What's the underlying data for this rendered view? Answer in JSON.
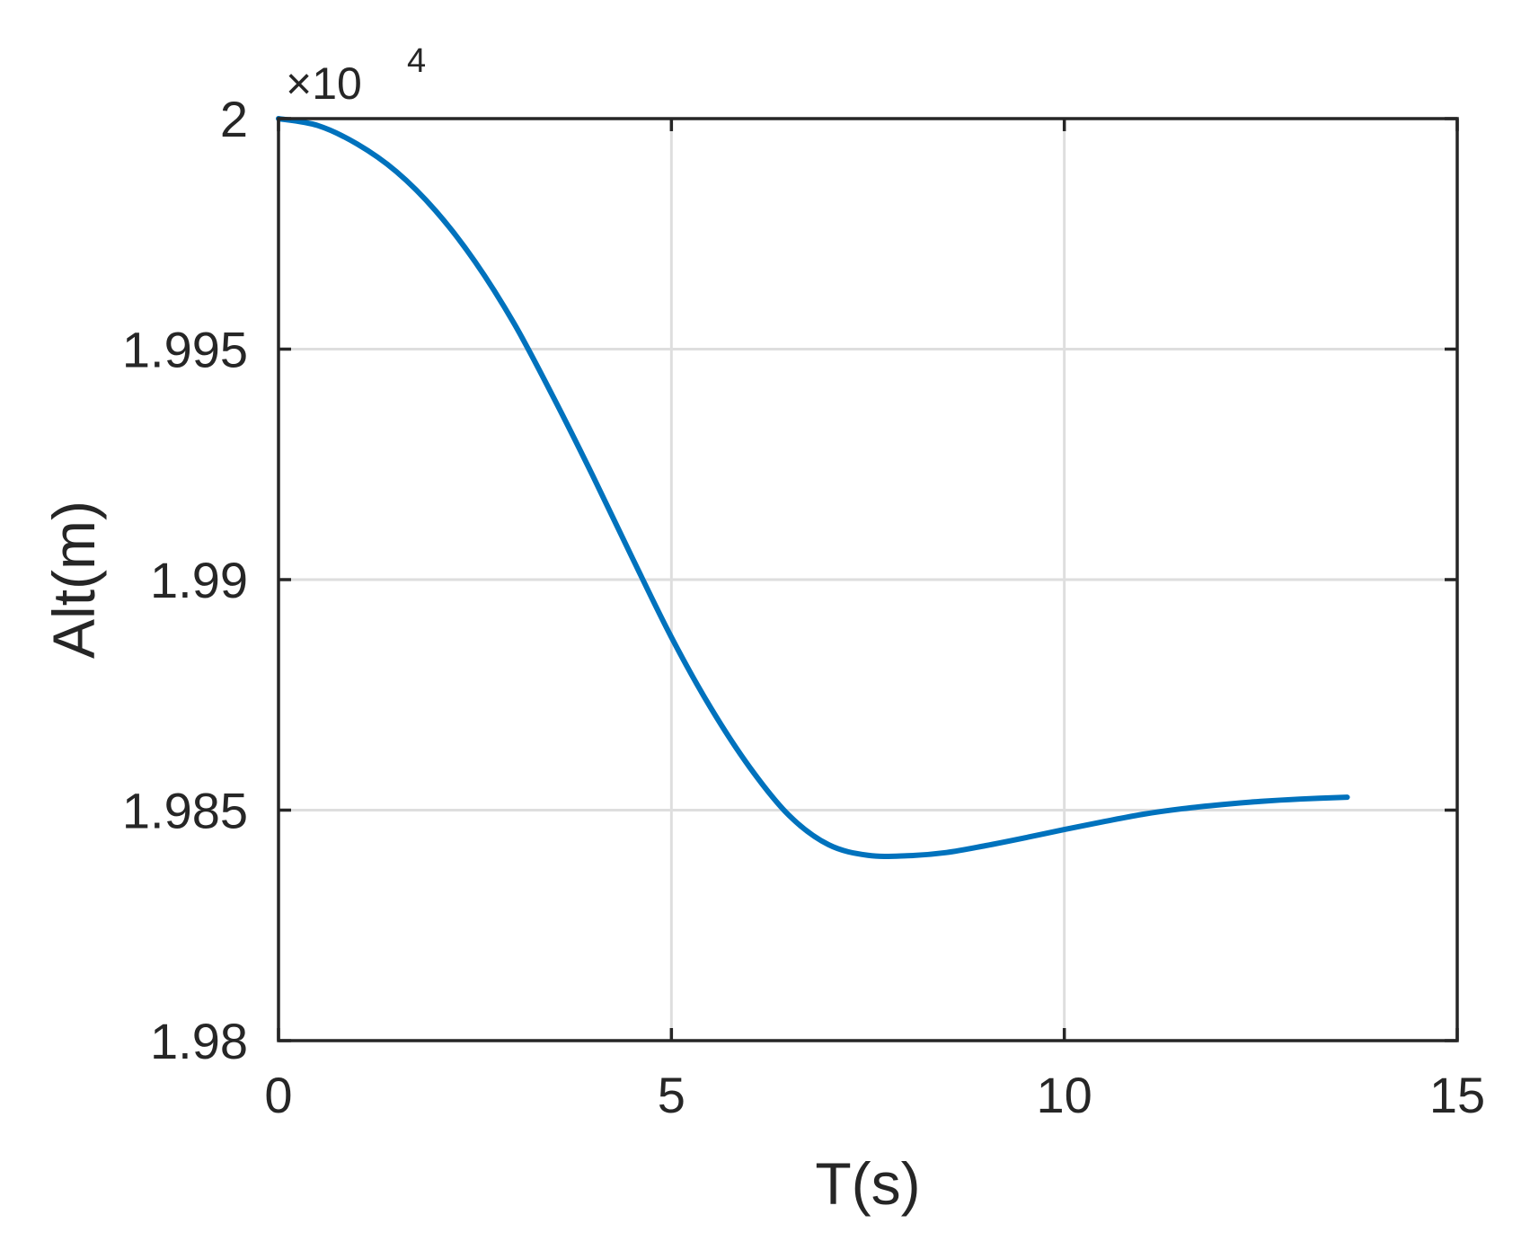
{
  "chart_data": {
    "type": "line",
    "title": "",
    "xlabel": "T(s)",
    "ylabel": "Alt(m)",
    "xlim": [
      0,
      15
    ],
    "ylim": [
      1.98,
      2.0
    ],
    "x_ticks": [
      0,
      5,
      10,
      15
    ],
    "x_tick_labels": [
      "0",
      "5",
      "10",
      "15"
    ],
    "y_ticks": [
      1.98,
      1.985,
      1.99,
      1.995,
      2.0
    ],
    "y_tick_labels": [
      "1.98",
      "1.985",
      "1.99",
      "1.995",
      "2"
    ],
    "y_exponent": {
      "base": "×10",
      "power": "4"
    },
    "grid": true,
    "series": [
      {
        "color": "#0072bd",
        "x": [
          0,
          0.5,
          1,
          1.5,
          2,
          2.5,
          3,
          3.5,
          4,
          4.5,
          5,
          5.5,
          6,
          6.5,
          7,
          7.5,
          8,
          8.5,
          9,
          9.5,
          10,
          10.5,
          11,
          11.5,
          12,
          12.5,
          13,
          13.6
        ],
        "y": [
          2.0,
          1.99985,
          1.99945,
          1.99885,
          1.998,
          1.9969,
          1.99555,
          1.99395,
          1.99225,
          1.99048,
          1.98875,
          1.98722,
          1.98592,
          1.98488,
          1.98425,
          1.98402,
          1.98401,
          1.98408,
          1.98423,
          1.9844,
          1.98458,
          1.98475,
          1.98491,
          1.98503,
          1.98512,
          1.98519,
          1.98524,
          1.98528
        ]
      }
    ]
  }
}
